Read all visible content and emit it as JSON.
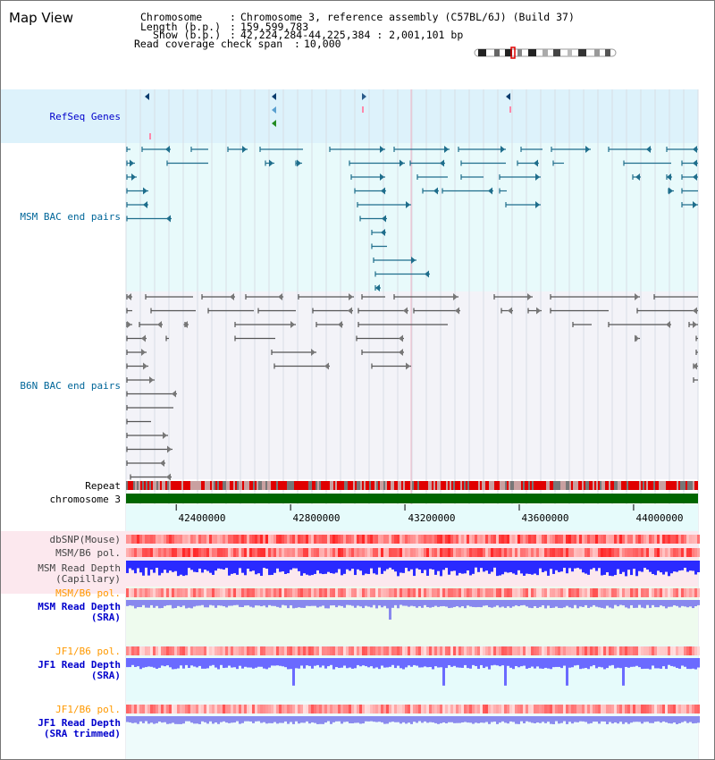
{
  "title": "Map View",
  "info": {
    "chromosome_label": "Chromosome",
    "chromosome_value": "Chromosome 3, reference assembly (C57BL/6J) (Build 37)",
    "length_label": "Length (b.p.)",
    "length_value": "159,599,783",
    "show_label": "Show (b.p.)",
    "show_value": "42,224,284-44,225,384 : 2,001,101 bp",
    "coverage_label": "Read coverage check span",
    "coverage_value": "10,000"
  },
  "tracks": {
    "refseq": "RefSeq Genes",
    "msm_bac": "MSM BAC end pairs",
    "b6n_bac": "B6N BAC end pairs",
    "repeat": "Repeat",
    "chromosome": "chromosome 3",
    "dbsnp": "dbSNP(Mouse)",
    "msm_b6_pol_1": "MSM/B6 pol.",
    "msm_read_depth_cap_1": "MSM Read Depth",
    "msm_read_depth_cap_2": "(Capillary)",
    "msm_b6_pol_2": "MSM/B6 pol.",
    "msm_read_depth_sra_1": "MSM Read Depth",
    "msm_read_depth_sra_2": "(SRA)",
    "jf1_b6_pol_1": "JF1/B6 pol.",
    "jf1_read_depth_sra_1": "JF1 Read Depth",
    "jf1_read_depth_sra_2": "(SRA)",
    "jf1_b6_pol_2": "JF1/B6 pol.",
    "jf1_read_depth_trim_1": "JF1 Read Depth",
    "jf1_read_depth_trim_2": "(SRA trimmed)"
  },
  "axis": {
    "range": [
      42224284,
      44225384
    ],
    "ticks": [
      "42400000",
      "42800000",
      "43200000",
      "43600000",
      "44000000"
    ],
    "tick_values": [
      42400000,
      42800000,
      43200000,
      43600000,
      44000000
    ]
  },
  "colors": {
    "label_blue": "#0000cc",
    "label_teal": "#006699",
    "label_orange": "#ff9900",
    "refseq_bg": "#ddf2fb",
    "msm_bg": "#e8fafb",
    "b6n_bg": "#f3f3f8",
    "chromosome_green": "#006600",
    "depth_blue": "#2a2aff"
  }
}
